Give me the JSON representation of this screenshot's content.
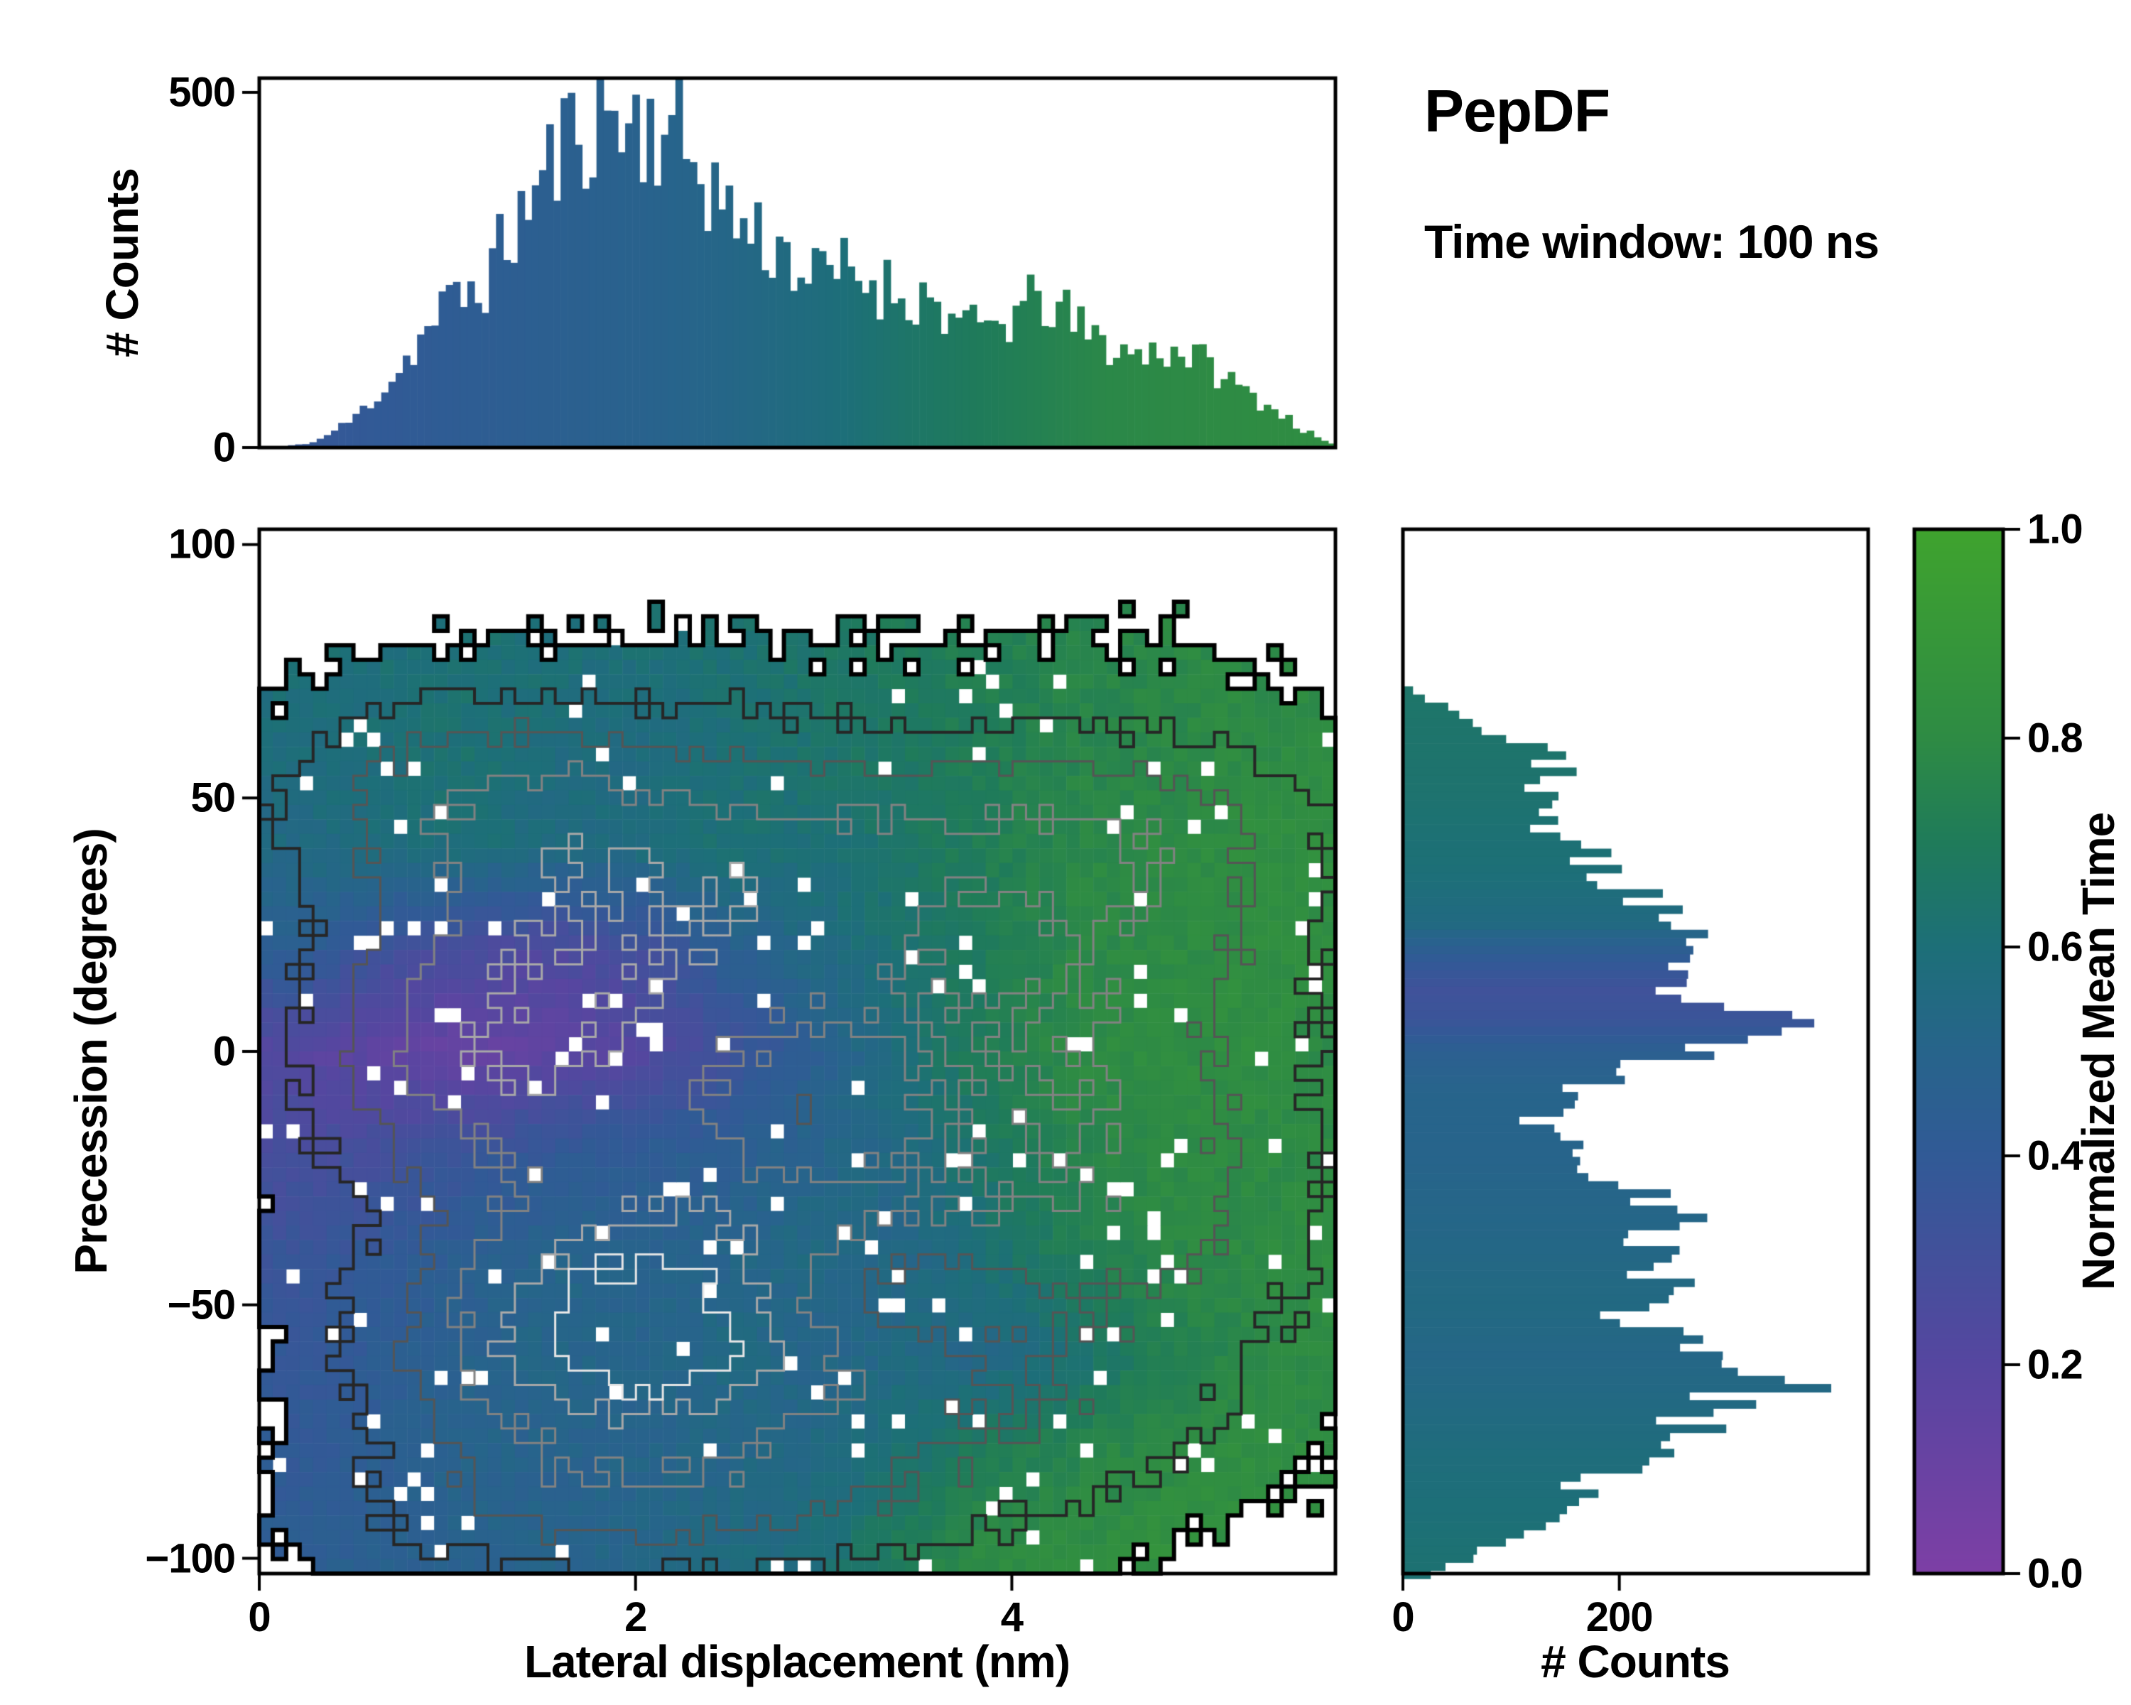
{
  "title": "PepDF",
  "subtitle": "Time window: 100 ns",
  "colors": {
    "background": "#ffffff",
    "axis": "#000000",
    "colormap_stops": [
      [
        0.0,
        "#7d3fa5"
      ],
      [
        0.2,
        "#5646a0"
      ],
      [
        0.4,
        "#315a96"
      ],
      [
        0.5,
        "#27648b"
      ],
      [
        0.6,
        "#1d6f78"
      ],
      [
        0.7,
        "#1f7b5a"
      ],
      [
        0.8,
        "#2e8b44"
      ],
      [
        1.0,
        "#3fa32e"
      ]
    ]
  },
  "axes": {
    "x": {
      "label": "Lateral displacement (nm)",
      "min": 0,
      "max": 5.72,
      "ticks": [
        0,
        2,
        4
      ],
      "tick_labels": [
        "0",
        "2",
        "4"
      ]
    },
    "y": {
      "label": "Precession (degrees)",
      "min": -103,
      "max": 103,
      "ticks": [
        100,
        50,
        0,
        -50,
        -100
      ],
      "tick_labels": [
        "100",
        "50",
        "0",
        "−50",
        "−100"
      ]
    },
    "top_counts": {
      "label": "# Counts",
      "min": 0,
      "max": 520,
      "ticks": [
        0,
        500
      ],
      "tick_labels": [
        "0",
        "500"
      ]
    },
    "right_counts": {
      "label": "# Counts",
      "min": 0,
      "max": 430,
      "ticks": [
        0,
        200
      ],
      "tick_labels": [
        "0",
        "200"
      ]
    },
    "colorbar": {
      "label": "Normalized Mean Time",
      "min": 0.0,
      "max": 1.0,
      "ticks": [
        0.0,
        0.2,
        0.4,
        0.6,
        0.8,
        1.0
      ],
      "tick_labels": [
        "0.0",
        "0.2",
        "0.4",
        "0.6",
        "0.8",
        "1.0"
      ]
    }
  },
  "chart_data": [
    {
      "type": "bar",
      "name": "lateral-displacement-histogram",
      "xlabel": "Lateral displacement (nm)",
      "ylabel": "# Counts",
      "xlim": [
        0,
        5.72
      ],
      "ylim": [
        0,
        520
      ],
      "n_bins": 150,
      "noise": 0.22,
      "envelope": [
        [
          0.1,
          0
        ],
        [
          0.3,
          8
        ],
        [
          0.5,
          40
        ],
        [
          0.7,
          95
        ],
        [
          0.85,
          150
        ],
        [
          1.0,
          200
        ],
        [
          1.2,
          235
        ],
        [
          1.4,
          330
        ],
        [
          1.6,
          420
        ],
        [
          1.75,
          465
        ],
        [
          1.85,
          475
        ],
        [
          2.0,
          450
        ],
        [
          2.1,
          465
        ],
        [
          2.2,
          440
        ],
        [
          2.35,
          395
        ],
        [
          2.5,
          330
        ],
        [
          2.65,
          300
        ],
        [
          2.8,
          275
        ],
        [
          2.95,
          235
        ],
        [
          3.1,
          250
        ],
        [
          3.25,
          235
        ],
        [
          3.45,
          215
        ],
        [
          3.6,
          205
        ],
        [
          3.75,
          165
        ],
        [
          3.95,
          175
        ],
        [
          4.1,
          200
        ],
        [
          4.2,
          205
        ],
        [
          4.35,
          170
        ],
        [
          4.5,
          145
        ],
        [
          4.65,
          130
        ],
        [
          4.85,
          140
        ],
        [
          5.0,
          125
        ],
        [
          5.15,
          95
        ],
        [
          5.3,
          70
        ],
        [
          5.45,
          45
        ],
        [
          5.55,
          25
        ],
        [
          5.65,
          10
        ],
        [
          5.72,
          3
        ]
      ],
      "color_t": [
        [
          0,
          0.36
        ],
        [
          1,
          0.42
        ],
        [
          2,
          0.48
        ],
        [
          2.5,
          0.52
        ],
        [
          3,
          0.58
        ],
        [
          3.5,
          0.66
        ],
        [
          4,
          0.72
        ],
        [
          4.5,
          0.78
        ],
        [
          5.72,
          0.82
        ]
      ]
    },
    {
      "type": "heatmap",
      "name": "precession-vs-displacement-map",
      "xlabel": "Lateral displacement (nm)",
      "ylabel": "Precession (degrees)",
      "value_label": "Normalized Mean Time",
      "xlim": [
        0,
        5.72
      ],
      "ylim": [
        -103,
        103
      ],
      "grid": {
        "cols": 80,
        "rows": 72
      },
      "seed": 42,
      "mask_threshold": 0.14,
      "dropout": 0.04,
      "mean_time_grid": {
        "x": [
          0.2,
          0.66,
          1.12,
          1.58,
          2.04,
          2.5,
          2.96,
          3.42,
          3.88,
          4.34,
          4.8,
          5.26,
          5.6
        ],
        "y": [
          100,
          80,
          60,
          40,
          20,
          0,
          -20,
          -40,
          -60,
          -80,
          -100
        ],
        "t": [
          [
            0.6,
            0.6,
            0.62,
            0.6,
            0.6,
            0.62,
            0.65,
            0.7,
            0.72,
            0.75,
            0.78,
            0.8,
            0.8
          ],
          [
            0.6,
            0.6,
            0.62,
            0.6,
            0.6,
            0.62,
            0.65,
            0.7,
            0.72,
            0.76,
            0.78,
            0.8,
            0.8
          ],
          [
            0.58,
            0.6,
            0.62,
            0.58,
            0.56,
            0.6,
            0.64,
            0.68,
            0.72,
            0.76,
            0.78,
            0.8,
            0.8
          ],
          [
            0.55,
            0.58,
            0.6,
            0.55,
            0.58,
            0.62,
            0.6,
            0.66,
            0.72,
            0.78,
            0.8,
            0.82,
            0.82
          ],
          [
            0.45,
            0.32,
            0.26,
            0.24,
            0.3,
            0.45,
            0.55,
            0.62,
            0.7,
            0.78,
            0.8,
            0.82,
            0.82
          ],
          [
            0.2,
            0.15,
            0.12,
            0.15,
            0.22,
            0.32,
            0.45,
            0.6,
            0.72,
            0.8,
            0.82,
            0.82,
            0.8
          ],
          [
            0.28,
            0.3,
            0.35,
            0.4,
            0.42,
            0.45,
            0.5,
            0.55,
            0.66,
            0.76,
            0.8,
            0.8,
            0.8
          ],
          [
            0.35,
            0.4,
            0.45,
            0.5,
            0.48,
            0.5,
            0.55,
            0.52,
            0.62,
            0.72,
            0.78,
            0.8,
            0.82
          ],
          [
            0.38,
            0.42,
            0.48,
            0.52,
            0.5,
            0.55,
            0.5,
            0.55,
            0.52,
            0.62,
            0.72,
            0.78,
            0.8
          ],
          [
            0.4,
            0.44,
            0.5,
            0.48,
            0.5,
            0.52,
            0.55,
            0.62,
            0.72,
            0.76,
            0.8,
            0.82,
            0.82
          ],
          [
            0.44,
            0.46,
            0.48,
            0.5,
            0.52,
            0.55,
            0.6,
            0.72,
            0.8,
            0.82,
            0.84,
            0.84,
            0.84
          ]
        ]
      },
      "density_blobs": [
        [
          1.6,
          12,
          0.8,
          22,
          0.95
        ],
        [
          1.0,
          -2,
          0.7,
          18,
          0.8
        ],
        [
          2.0,
          -40,
          0.9,
          20,
          1.0
        ],
        [
          1.5,
          -63,
          0.8,
          16,
          0.95
        ],
        [
          2.4,
          -58,
          0.8,
          16,
          0.85
        ],
        [
          2.0,
          45,
          1.1,
          20,
          0.75
        ],
        [
          0.9,
          52,
          0.8,
          15,
          0.7
        ],
        [
          3.2,
          -15,
          0.9,
          25,
          0.6
        ],
        [
          3.0,
          30,
          1.0,
          20,
          0.6
        ],
        [
          4.2,
          25,
          0.9,
          25,
          0.55
        ],
        [
          4.3,
          -25,
          0.8,
          20,
          0.5
        ],
        [
          4.0,
          -75,
          0.9,
          15,
          0.55
        ],
        [
          2.5,
          -90,
          1.2,
          12,
          0.5
        ],
        [
          1.5,
          -92,
          1.0,
          10,
          0.5
        ],
        [
          4.6,
          45,
          0.8,
          12,
          0.5
        ],
        [
          5.0,
          20,
          0.9,
          40,
          0.5
        ],
        [
          5.0,
          -45,
          0.8,
          25,
          0.45
        ],
        [
          2.8,
          -15,
          2.2,
          75,
          0.45
        ],
        [
          3.3,
          -48,
          0.5,
          7,
          -0.55
        ],
        [
          2.9,
          -12,
          0.35,
          8,
          -0.4
        ],
        [
          3.85,
          24,
          0.3,
          8,
          -0.4
        ]
      ],
      "contour_levels": [
        0.14,
        0.3,
        0.46,
        0.62,
        0.78,
        0.9
      ],
      "contour_colors": [
        "#000000",
        "#262626",
        "#555555",
        "#828282",
        "#a8a8a8",
        "#e6e6e6"
      ],
      "contour_widths": [
        6,
        4,
        3,
        3,
        3,
        3
      ]
    },
    {
      "type": "bar",
      "name": "precession-histogram",
      "orientation": "horizontal",
      "xlabel": "# Counts",
      "ylabel": "Precession (degrees)",
      "xlim": [
        0,
        430
      ],
      "ylim": [
        -103,
        103
      ],
      "n_bins": 110,
      "range": [
        -104,
        72
      ],
      "noise": 0.18,
      "envelope": [
        [
          -104,
          10
        ],
        [
          -102,
          40
        ],
        [
          -98,
          80
        ],
        [
          -94,
          120
        ],
        [
          -90,
          150
        ],
        [
          -86,
          170
        ],
        [
          -82,
          200
        ],
        [
          -78,
          220
        ],
        [
          -74,
          260
        ],
        [
          -70,
          300
        ],
        [
          -66,
          340
        ],
        [
          -64,
          350
        ],
        [
          -62,
          330
        ],
        [
          -58,
          280
        ],
        [
          -54,
          230
        ],
        [
          -50,
          210
        ],
        [
          -46,
          240
        ],
        [
          -42,
          250
        ],
        [
          -38,
          230
        ],
        [
          -34,
          240
        ],
        [
          -30,
          250
        ],
        [
          -26,
          220
        ],
        [
          -22,
          180
        ],
        [
          -18,
          150
        ],
        [
          -14,
          130
        ],
        [
          -10,
          140
        ],
        [
          -6,
          180
        ],
        [
          -2,
          230
        ],
        [
          2,
          300
        ],
        [
          6,
          330
        ],
        [
          10,
          280
        ],
        [
          14,
          240
        ],
        [
          18,
          230
        ],
        [
          22,
          240
        ],
        [
          26,
          250
        ],
        [
          30,
          230
        ],
        [
          34,
          190
        ],
        [
          38,
          170
        ],
        [
          42,
          150
        ],
        [
          46,
          130
        ],
        [
          50,
          120
        ],
        [
          55,
          150
        ],
        [
          58,
          140
        ],
        [
          62,
          90
        ],
        [
          66,
          60
        ],
        [
          70,
          20
        ],
        [
          72,
          5
        ]
      ],
      "color_t": [
        [
          -100,
          0.62
        ],
        [
          -90,
          0.6
        ],
        [
          -80,
          0.58
        ],
        [
          -70,
          0.55
        ],
        [
          -60,
          0.52
        ],
        [
          -50,
          0.55
        ],
        [
          -35,
          0.52
        ],
        [
          -20,
          0.5
        ],
        [
          -8,
          0.5
        ],
        [
          0,
          0.45
        ],
        [
          6,
          0.35
        ],
        [
          12,
          0.32
        ],
        [
          18,
          0.4
        ],
        [
          25,
          0.55
        ],
        [
          35,
          0.6
        ],
        [
          50,
          0.63
        ],
        [
          70,
          0.65
        ]
      ]
    },
    {
      "type": "colorbar",
      "name": "normalized-mean-time-colorbar",
      "label": "Normalized Mean Time",
      "range": [
        0.0,
        1.0
      ],
      "ticks": [
        0.0,
        0.2,
        0.4,
        0.6,
        0.8,
        1.0
      ]
    }
  ]
}
